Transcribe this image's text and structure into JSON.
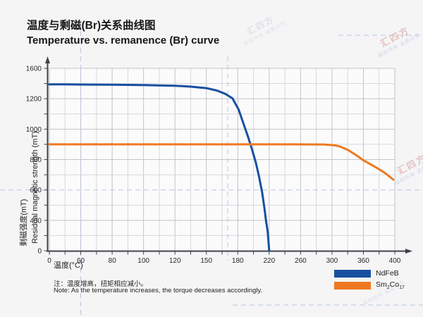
{
  "header": {
    "title_zh": "温度与剩磁(Br)关系曲线图",
    "title_en": "Temperature vs. remanence (Br) curve"
  },
  "chart_data": {
    "type": "line",
    "title": "Temperature vs. remanence (Br) curve",
    "xlabel": "温度(°C)",
    "ylabel_zh": "剩磁强度(mT)",
    "ylabel_en": "Residual magnetic strength (mT)",
    "x_ticks": [
      0,
      60,
      80,
      100,
      120,
      150,
      180,
      220,
      260,
      300,
      360,
      400
    ],
    "y_ticks": [
      0,
      400,
      600,
      800,
      1000,
      1200,
      1600
    ],
    "scale_note": "tick labels equally spaced as drawn (non-linear scale)",
    "grid": true,
    "legend_position": "bottom-right",
    "series": [
      {
        "name": "NdFeB",
        "color": "#1750a0",
        "points": [
          [
            0,
            1390
          ],
          [
            30,
            1389
          ],
          [
            60,
            1387
          ],
          [
            80,
            1384
          ],
          [
            100,
            1379
          ],
          [
            120,
            1371
          ],
          [
            135,
            1359
          ],
          [
            150,
            1340
          ],
          [
            160,
            1308
          ],
          [
            168,
            1265
          ],
          [
            175,
            1205
          ],
          [
            181,
            1130
          ],
          [
            187,
            1040
          ],
          [
            193,
            950
          ],
          [
            198,
            870
          ],
          [
            203,
            780
          ],
          [
            207,
            690
          ],
          [
            211,
            585
          ],
          [
            214,
            480
          ],
          [
            216,
            390
          ],
          [
            218,
            260
          ],
          [
            219,
            140
          ],
          [
            220,
            0
          ]
        ]
      },
      {
        "name": "Sm2Co17",
        "color": "#ee7820",
        "points": [
          [
            0,
            900
          ],
          [
            120,
            900
          ],
          [
            250,
            900
          ],
          [
            290,
            899
          ],
          [
            305,
            894
          ],
          [
            315,
            886
          ],
          [
            330,
            864
          ],
          [
            345,
            832
          ],
          [
            360,
            795
          ],
          [
            375,
            752
          ],
          [
            388,
            710
          ],
          [
            398,
            668
          ]
        ]
      }
    ]
  },
  "axis_titles": {
    "y_zh": "剩磁强度(mT)",
    "y_en": "Residual magnetic strength (mT)",
    "x": "温度(°C)"
  },
  "legend": {
    "items": [
      {
        "label": "NdFeB"
      },
      {
        "p1": "Sm",
        "s1": "2",
        "p2": "Co",
        "s2": "17"
      }
    ]
  },
  "notes": {
    "zh": "注：温度增高，扭矩相应减小。",
    "en": "Note: As the temperature increases, the torque decreases accordingly."
  },
  "watermarks": {
    "brand": "汇四方",
    "notice": "版权所有 盗图必究"
  },
  "colors": {
    "ndfeb_blue": "#1750a0",
    "smco_orange": "#ee7820",
    "page_bg": "#f5f5f6",
    "grid_major": "#c2c4c8",
    "grid_minor": "#d6d8db",
    "axis": "#3f444b",
    "dashed_accent": "#b9c6e0"
  }
}
